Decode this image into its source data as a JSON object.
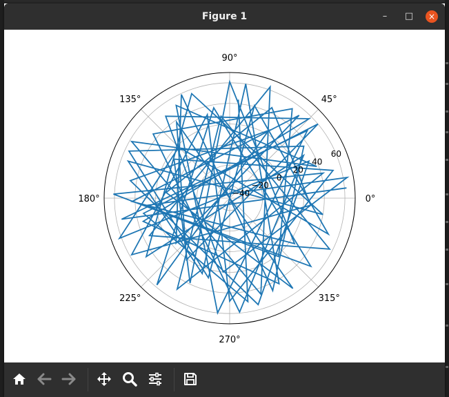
{
  "window": {
    "title": "Figure 1",
    "controls": {
      "minimize": "–",
      "maximize": "□",
      "close": "×"
    }
  },
  "toolbar": {
    "items": [
      {
        "name": "home",
        "icon": "home-icon"
      },
      {
        "name": "back",
        "icon": "arrow-left-icon"
      },
      {
        "name": "forward",
        "icon": "arrow-right-icon"
      },
      {
        "name": "pan",
        "icon": "move-icon"
      },
      {
        "name": "zoom",
        "icon": "magnifier-icon"
      },
      {
        "name": "configure-subplots",
        "icon": "sliders-icon"
      },
      {
        "name": "save",
        "icon": "floppy-disk-icon"
      }
    ]
  },
  "colors": {
    "titlebar": "#2f2f2f",
    "close_button": "#e95420",
    "line": "#1f77b4",
    "grid": "#b0b0b0"
  },
  "chart_data": {
    "type": "line",
    "projection": "polar",
    "title": "",
    "angle_ticks": [
      "0°",
      "45°",
      "90°",
      "135°",
      "180°",
      "225°",
      "270°",
      "315°"
    ],
    "angle_tick_values": [
      0,
      45,
      90,
      135,
      180,
      225,
      270,
      315
    ],
    "radial_ticks": [
      "−40",
      "−20",
      "0",
      "20",
      "40",
      "60"
    ],
    "radial_tick_values": [
      -40,
      -20,
      0,
      20,
      40,
      60
    ],
    "rlim": [
      -52,
      70
    ],
    "radial_label_angle_deg": 22.5,
    "grid": true,
    "series": [
      {
        "color": "#1f77b4",
        "approx_point_count": 400,
        "theta_deg": [
          5.0,
          191.0,
          41.0,
          264.0,
          120.0,
          20.0,
          150.0,
          288.0,
          70.0,
          205.0,
          333.0,
          96.0,
          240.0,
          15.0,
          178.0,
          310.0,
          55.0,
          140.0,
          275.0,
          30.0,
          215.0,
          110.0,
          350.0,
          160.0,
          250.0,
          82.0,
          300.0,
          195.0,
          45.0,
          128.0,
          265.0,
          10.0,
          185.0,
          320.0,
          100.0,
          230.0,
          60.0,
          170.0,
          285.0,
          25.0,
          200.0,
          135.0,
          340.0,
          75.0,
          255.0,
          155.0,
          35.0,
          295.0,
          115.0,
          220.0,
          50.0,
          182.0,
          325.0,
          90.0,
          245.0,
          145.0,
          15.0,
          270.0,
          105.0,
          210.0,
          355.0,
          65.0,
          175.0,
          305.0,
          125.0,
          235.0,
          40.0,
          190.0,
          280.0,
          85.0
        ],
        "r": [
          62,
          55,
          48,
          60,
          52,
          38,
          58,
          46,
          63,
          34,
          57,
          28,
          50,
          42,
          61,
          22,
          54,
          45,
          59,
          31,
          47,
          56,
          40,
          53,
          26,
          60,
          44,
          35,
          57,
          49,
          20,
          64,
          30,
          51,
          37,
          58,
          24,
          46,
          55,
          33,
          62,
          18,
          50,
          41,
          28,
          56,
          36,
          47,
          59,
          16,
          53,
          43,
          25,
          61,
          39,
          14,
          52,
          48,
          32,
          58,
          27,
          45,
          10,
          55,
          38,
          21,
          60,
          33,
          50,
          44
        ]
      }
    ]
  }
}
